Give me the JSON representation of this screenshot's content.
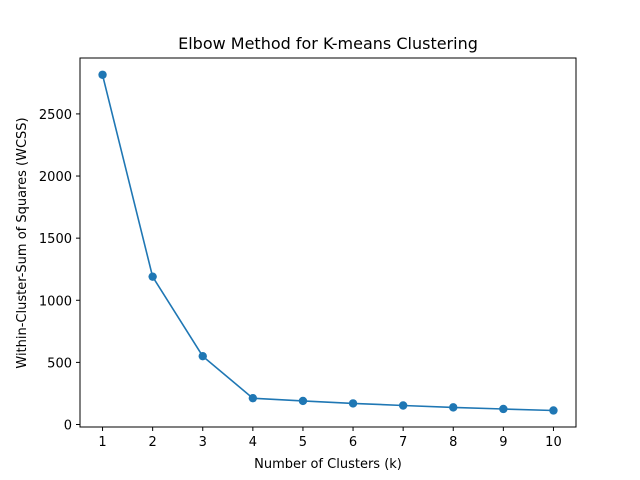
{
  "chart_data": {
    "type": "line",
    "title": "Elbow Method for K-means Clustering",
    "xlabel": "Number of Clusters (k)",
    "ylabel": "Within-Cluster-Sum of Squares (WCSS)",
    "x": [
      1,
      2,
      3,
      4,
      5,
      6,
      7,
      8,
      9,
      10
    ],
    "series": [
      {
        "values": [
          2815,
          1190,
          550,
          212,
          190,
          170,
          153,
          138,
          125,
          113
        ],
        "color": "#1f77b4",
        "marker": "circle"
      }
    ],
    "xlim": [
      0.55,
      10.45
    ],
    "ylim": [
      -20,
      2950
    ],
    "xticks": [
      1,
      2,
      3,
      4,
      5,
      6,
      7,
      8,
      9,
      10
    ],
    "yticks": [
      0,
      500,
      1000,
      1500,
      2000,
      2500
    ],
    "grid": false,
    "legend": "none"
  }
}
